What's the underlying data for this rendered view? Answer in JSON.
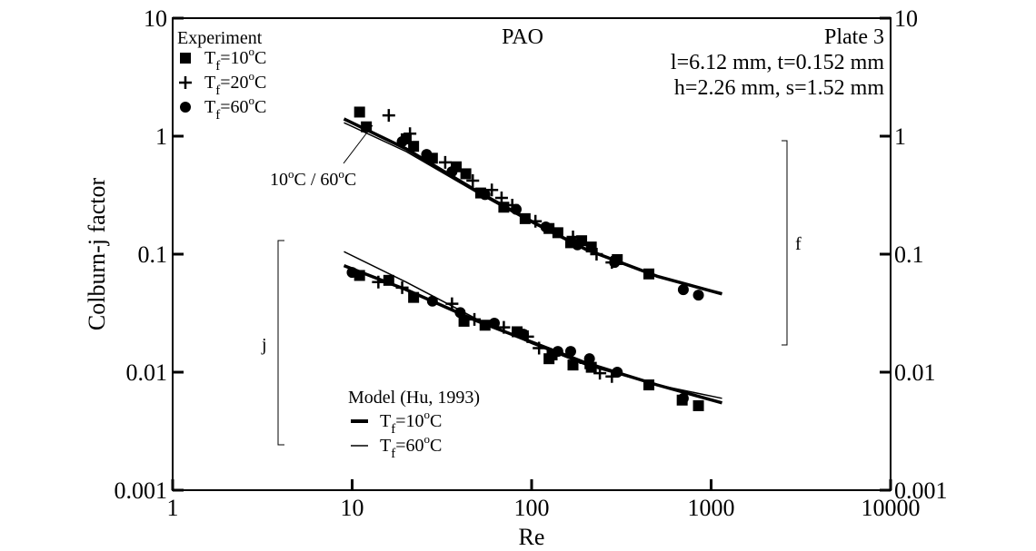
{
  "chart_data": {
    "type": "scatter",
    "scale": {
      "x": "log",
      "y": "log"
    },
    "xlabel": "Re",
    "ylabel": "Colburn-j factor",
    "xlim": [
      1,
      10000
    ],
    "ylim": [
      0.001,
      10
    ],
    "x_ticks": [
      "1",
      "10",
      "100",
      "1000",
      "10000"
    ],
    "y_ticks": [
      "0.001",
      "0.01",
      "0.1",
      "1",
      "10"
    ],
    "y2_ticks": [
      "0.001",
      "0.01",
      "0.1",
      "1",
      "10"
    ],
    "title": "PAO",
    "plate_info": [
      "Plate 3",
      "l=6.12 mm, t=0.152 mm",
      "h=2.26 mm, s=1.52 mm"
    ],
    "experiment_title": "Experiment",
    "model_title": "Model (Hu, 1993)",
    "legend_var": "T",
    "legend_sub": "f",
    "legend_experiment": [
      {
        "marker": "square",
        "value": "=10",
        "unit": "C"
      },
      {
        "marker": "plus",
        "value": "=20",
        "unit": "C"
      },
      {
        "marker": "circle",
        "value": "=60",
        "unit": "C"
      }
    ],
    "legend_model": [
      {
        "line": "thick",
        "value": "=10",
        "unit": "C"
      },
      {
        "line": "thin",
        "value": "=60",
        "unit": "C"
      }
    ],
    "degree_symbol": "o",
    "annotation_curve": {
      "a": "10",
      "b": "C / 60",
      "c": "C"
    },
    "group_labels": {
      "f": "f",
      "j": "j"
    },
    "series": [
      {
        "group": "f",
        "marker": "square",
        "points": [
          [
            11,
            1.6
          ],
          [
            12,
            1.2
          ],
          [
            20,
            0.95
          ],
          [
            22,
            0.82
          ],
          [
            28,
            0.65
          ],
          [
            38,
            0.55
          ],
          [
            43,
            0.48
          ],
          [
            52,
            0.33
          ],
          [
            70,
            0.25
          ],
          [
            92,
            0.2
          ],
          [
            125,
            0.165
          ],
          [
            140,
            0.152
          ],
          [
            165,
            0.125
          ],
          [
            190,
            0.13
          ],
          [
            215,
            0.115
          ],
          [
            300,
            0.09
          ],
          [
            450,
            0.068
          ]
        ]
      },
      {
        "group": "f",
        "marker": "plus",
        "points": [
          [
            16,
            1.5
          ],
          [
            21,
            1.05
          ],
          [
            33,
            0.6
          ],
          [
            47,
            0.42
          ],
          [
            60,
            0.35
          ],
          [
            68,
            0.3
          ],
          [
            78,
            0.26
          ],
          [
            105,
            0.19
          ],
          [
            170,
            0.14
          ],
          [
            230,
            0.1
          ],
          [
            280,
            0.085
          ]
        ]
      },
      {
        "group": "f",
        "marker": "circle",
        "points": [
          [
            19,
            0.9
          ],
          [
            26,
            0.7
          ],
          [
            36,
            0.5
          ],
          [
            55,
            0.32
          ],
          [
            82,
            0.24
          ],
          [
            120,
            0.17
          ],
          [
            180,
            0.12
          ],
          [
            290,
            0.085
          ],
          [
            700,
            0.05
          ],
          [
            850,
            0.045
          ]
        ]
      },
      {
        "group": "j",
        "marker": "square",
        "points": [
          [
            11,
            0.066
          ],
          [
            16,
            0.06
          ],
          [
            22,
            0.043
          ],
          [
            42,
            0.027
          ],
          [
            55,
            0.025
          ],
          [
            83,
            0.022
          ],
          [
            125,
            0.013
          ],
          [
            130,
            0.014
          ],
          [
            170,
            0.0115
          ],
          [
            215,
            0.011
          ],
          [
            450,
            0.0078
          ],
          [
            690,
            0.0058
          ],
          [
            850,
            0.0052
          ]
        ]
      },
      {
        "group": "j",
        "marker": "plus",
        "points": [
          [
            14,
            0.058
          ],
          [
            19,
            0.052
          ],
          [
            36,
            0.038
          ],
          [
            48,
            0.028
          ],
          [
            70,
            0.024
          ],
          [
            95,
            0.02
          ],
          [
            110,
            0.016
          ],
          [
            200,
            0.012
          ],
          [
            240,
            0.0098
          ],
          [
            280,
            0.0092
          ]
        ]
      },
      {
        "group": "j",
        "marker": "circle",
        "points": [
          [
            10,
            0.07
          ],
          [
            28,
            0.04
          ],
          [
            40,
            0.032
          ],
          [
            62,
            0.026
          ],
          [
            90,
            0.021
          ],
          [
            140,
            0.015
          ],
          [
            165,
            0.015
          ],
          [
            210,
            0.013
          ],
          [
            300,
            0.01
          ],
          [
            700,
            0.006
          ]
        ]
      }
    ],
    "model_lines": [
      {
        "group": "f",
        "weight": "thick",
        "points": [
          [
            9,
            1.4
          ],
          [
            20,
            0.78
          ],
          [
            50,
            0.34
          ],
          [
            100,
            0.19
          ],
          [
            200,
            0.11
          ],
          [
            500,
            0.065
          ],
          [
            1150,
            0.046
          ]
        ]
      },
      {
        "group": "f",
        "weight": "thin",
        "points": [
          [
            9,
            1.3
          ],
          [
            20,
            0.74
          ],
          [
            50,
            0.33
          ],
          [
            100,
            0.185
          ],
          [
            200,
            0.108
          ],
          [
            500,
            0.064
          ],
          [
            1150,
            0.047
          ]
        ]
      },
      {
        "group": "j",
        "weight": "thick",
        "points": [
          [
            9,
            0.08
          ],
          [
            20,
            0.05
          ],
          [
            50,
            0.027
          ],
          [
            100,
            0.018
          ],
          [
            200,
            0.012
          ],
          [
            500,
            0.0078
          ],
          [
            1150,
            0.0055
          ]
        ]
      },
      {
        "group": "j",
        "weight": "thin",
        "points": [
          [
            9,
            0.105
          ],
          [
            20,
            0.058
          ],
          [
            50,
            0.028
          ],
          [
            100,
            0.0175
          ],
          [
            200,
            0.0115
          ],
          [
            500,
            0.0078
          ],
          [
            1150,
            0.006
          ]
        ]
      }
    ]
  }
}
